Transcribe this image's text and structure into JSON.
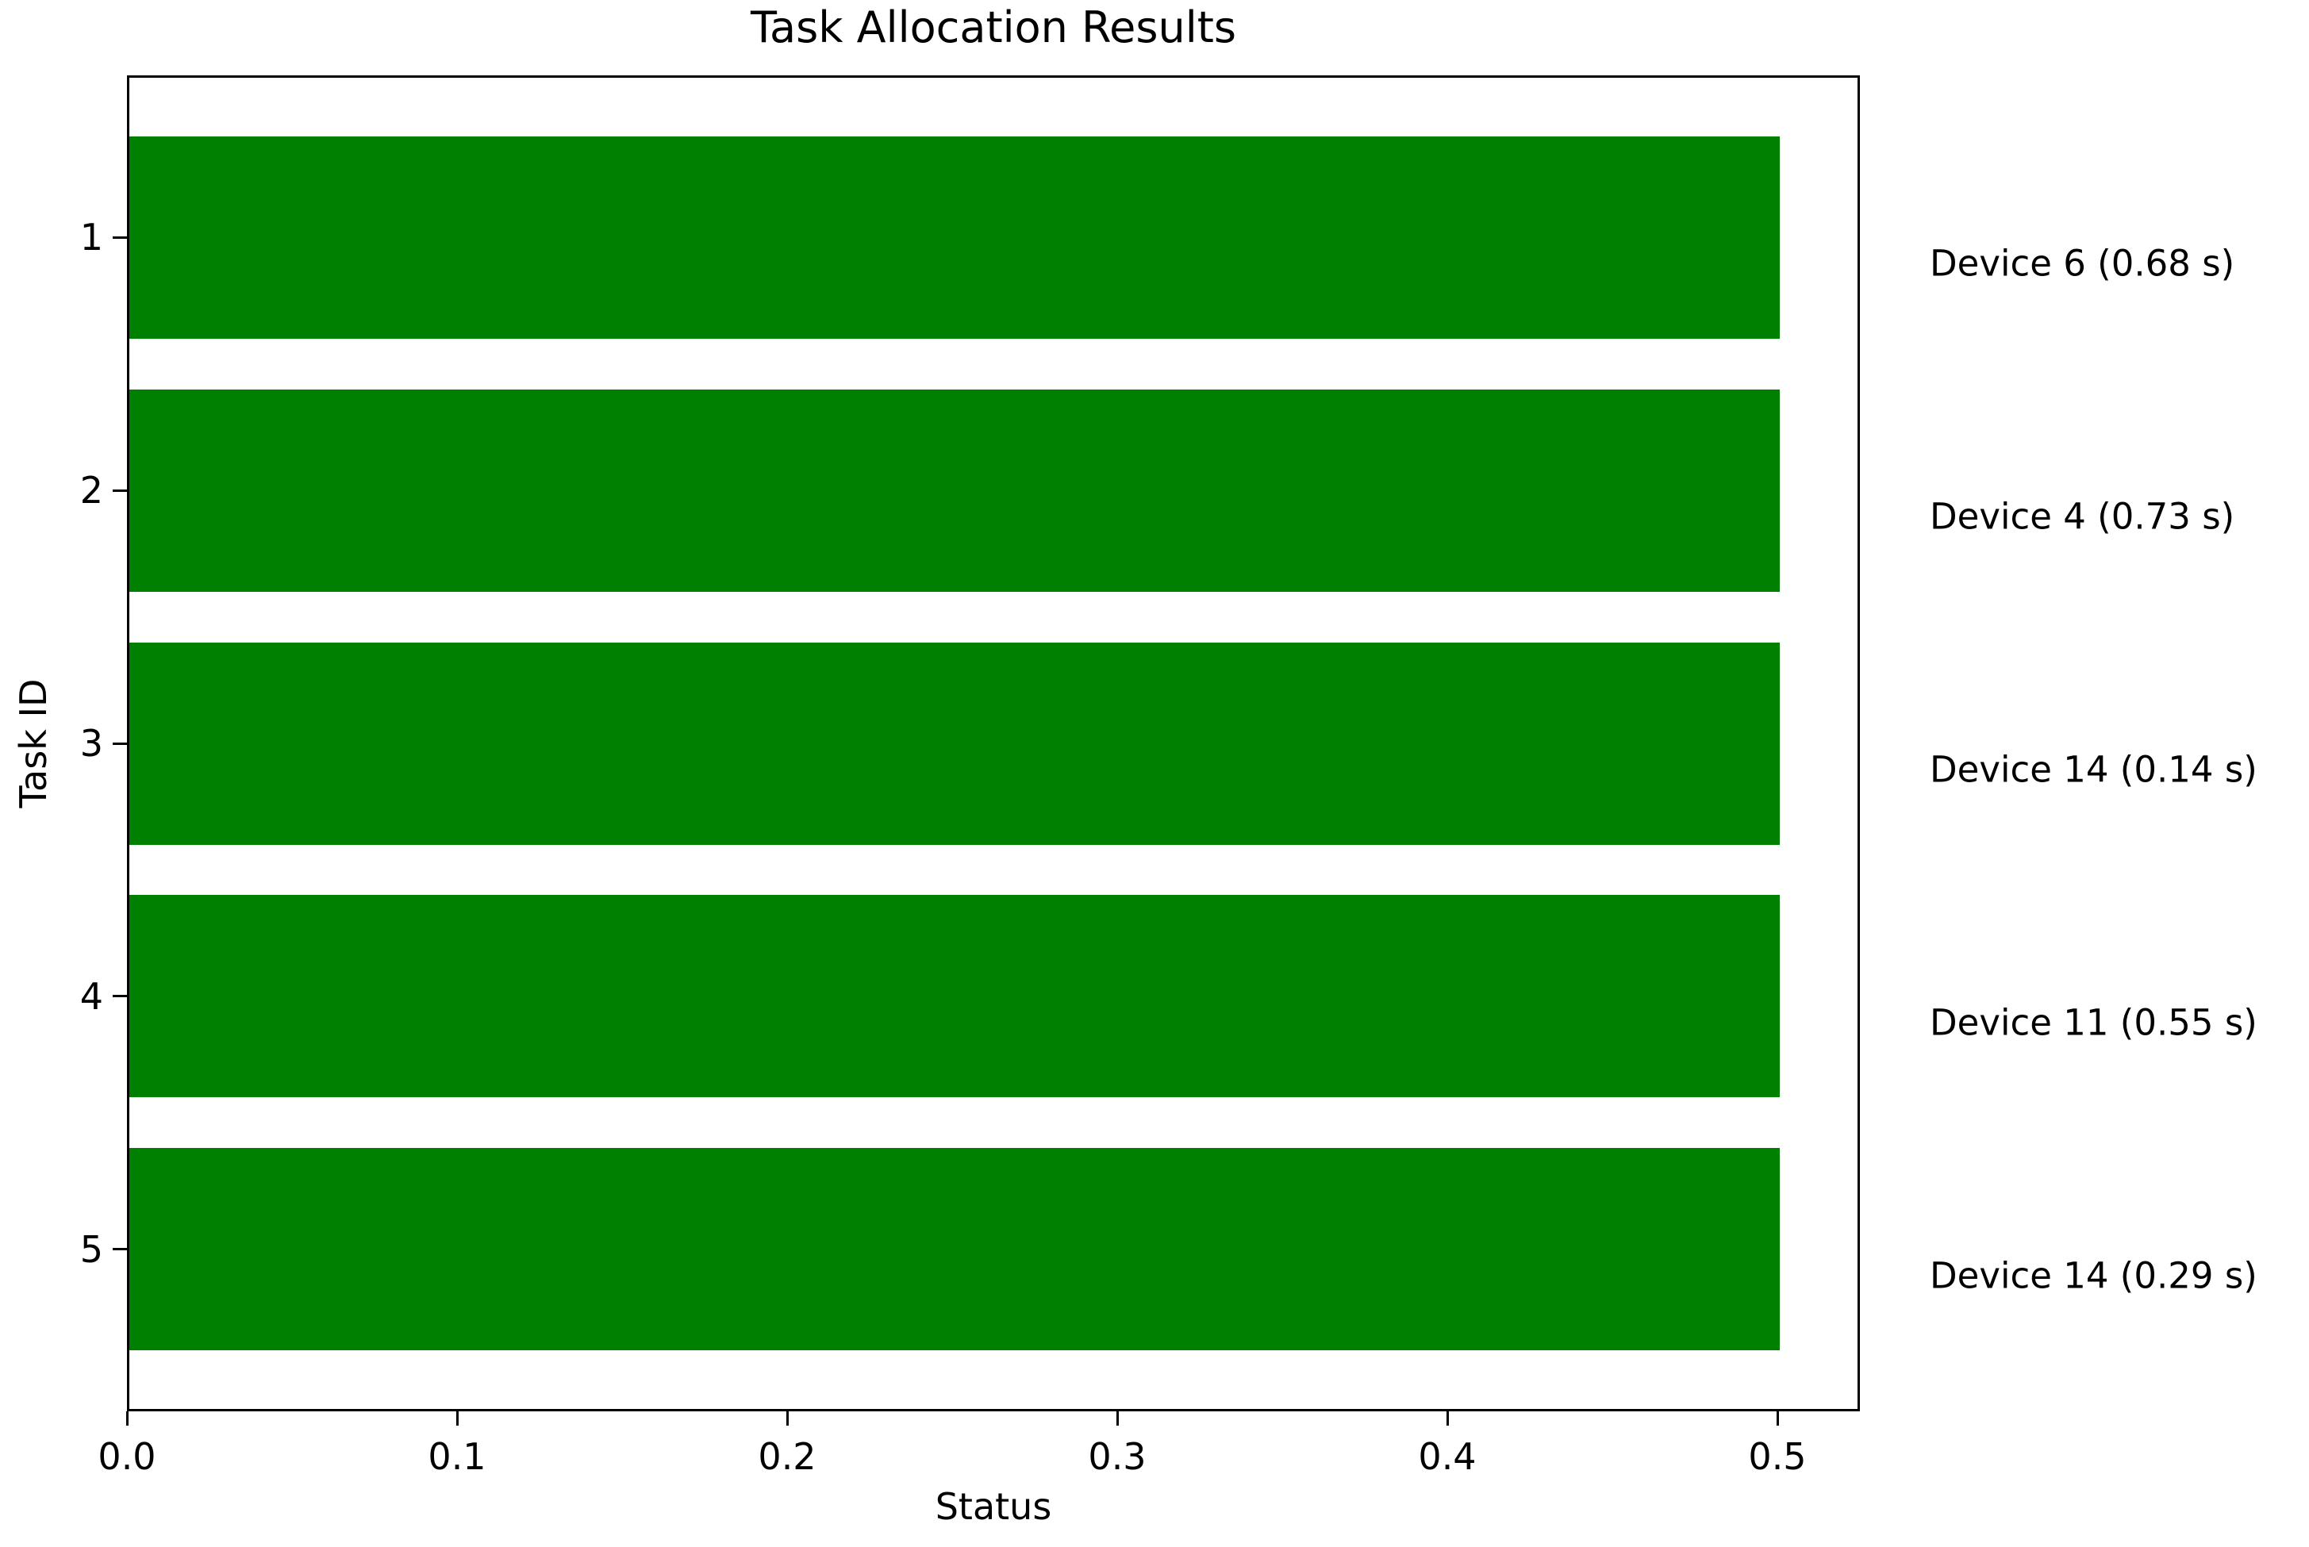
{
  "figure": {
    "title": "Task Allocation Results",
    "xlabel": "Status",
    "ylabel": "Task ID"
  },
  "chart_data": {
    "type": "bar",
    "orientation": "horizontal",
    "title": "Task Allocation Results",
    "xlabel": "Status",
    "ylabel": "Task ID",
    "grid": false,
    "legend": "none",
    "xlim": [
      0.0,
      0.525
    ],
    "x_ticks": [
      "0.0",
      "0.1",
      "0.2",
      "0.3",
      "0.4",
      "0.5"
    ],
    "x_tick_values": [
      0.0,
      0.1,
      0.2,
      0.3,
      0.4,
      0.5
    ],
    "y_tick_labels": [
      "1",
      "2",
      "3",
      "4",
      "5"
    ],
    "bar_color": "#008000",
    "spine_color": "#000000",
    "tasks": [
      {
        "task_id": "1",
        "value": 0.5,
        "annotation": "Device 6 (0.68 s)"
      },
      {
        "task_id": "2",
        "value": 0.5,
        "annotation": "Device 4 (0.73 s)"
      },
      {
        "task_id": "3",
        "value": 0.5,
        "annotation": "Device 14 (0.14 s)"
      },
      {
        "task_id": "4",
        "value": 0.5,
        "annotation": "Device 11 (0.55 s)"
      },
      {
        "task_id": "5",
        "value": 0.5,
        "annotation": "Device 14 (0.29 s)"
      }
    ]
  }
}
